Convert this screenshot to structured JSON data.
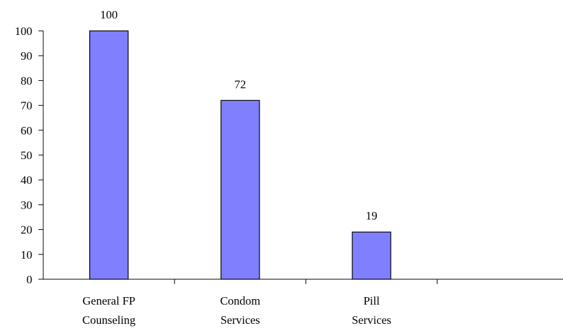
{
  "chart_data": {
    "type": "bar",
    "categories": [
      [
        "General FP",
        "Counseling"
      ],
      [
        "Condom",
        "Services"
      ],
      [
        "Pill",
        "Services"
      ]
    ],
    "values": [
      100,
      72,
      19
    ],
    "data_labels": [
      "100",
      "72",
      "19"
    ],
    "ylim": [
      0,
      100
    ],
    "yticks": [
      0,
      10,
      20,
      30,
      40,
      50,
      60,
      70,
      80,
      90,
      100
    ],
    "title": "",
    "xlabel": "",
    "ylabel": "",
    "grid": false,
    "legend": "none",
    "bar_color": "#8080ff",
    "bar_outline": "#000000"
  }
}
